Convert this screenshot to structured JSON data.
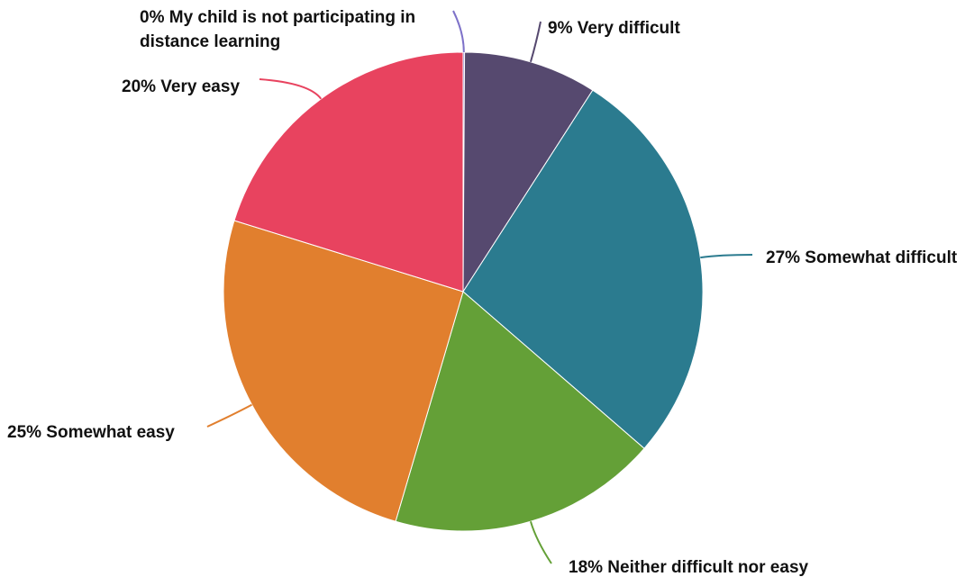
{
  "chart_data": {
    "type": "pie",
    "slices": [
      {
        "label": "Very difficult",
        "value": 9,
        "display": "9% Very difficult",
        "color": "#56496f"
      },
      {
        "label": "Somewhat difficult",
        "value": 27,
        "display": "27% Somewhat difficult",
        "color": "#2b7b8f"
      },
      {
        "label": "Neither difficult nor easy",
        "value": 18,
        "display": "18% Neither difficult nor easy",
        "color": "#64a037"
      },
      {
        "label": "Somewhat easy",
        "value": 25,
        "display": "25% Somewhat easy",
        "color": "#e17f2e"
      },
      {
        "label": "Very easy",
        "value": 20,
        "display": "20% Very easy",
        "color": "#e8435f"
      },
      {
        "label": "My child is not participating in distance learning",
        "value": 0,
        "display": [
          "0% My child is not participating in",
          "distance learning"
        ],
        "color": "#7e72c9"
      }
    ]
  }
}
